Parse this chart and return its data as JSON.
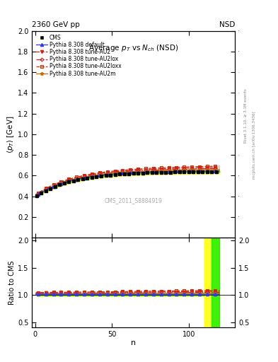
{
  "title": "Average $p_T$ vs $N_{ch}$ (NSD)",
  "top_left_label": "2360 GeV pp",
  "top_right_label": "NSD",
  "watermark": "CMS_2011_S8884919",
  "right_label_top": "Rivet 3.1.10, ≥ 3.1M events",
  "right_label_bot": "mcplots.cern.ch [arXiv:1306.3436]",
  "ylabel_main": "$\\langle p_T \\rangle$ [GeV]",
  "ylabel_ratio": "Ratio to CMS",
  "xlabel": "n",
  "ylim_main": [
    0.0,
    2.0
  ],
  "ylim_ratio": [
    0.4,
    2.05
  ],
  "xlim": [
    -2,
    130
  ],
  "yticks_main": [
    0.2,
    0.4,
    0.6,
    0.8,
    1.0,
    1.2,
    1.4,
    1.6,
    1.8,
    2.0
  ],
  "yticks_ratio": [
    0.5,
    1.0,
    1.5,
    2.0
  ],
  "xticks": [
    0,
    50,
    100
  ],
  "color_default": "#3333ff",
  "color_AU2": "#cc2222",
  "color_AU2lox": "#cc2222",
  "color_AU2loxx": "#cc3300",
  "color_AU2m": "#cc6600",
  "color_cms": "#000000",
  "band_yellow": "#ffff00",
  "band_green": "#00ee00",
  "band_yellow_alpha": 0.6,
  "band_green_alpha": 0.5
}
